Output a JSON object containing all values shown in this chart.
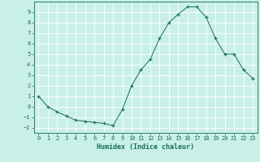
{
  "x": [
    0,
    1,
    2,
    3,
    4,
    5,
    6,
    7,
    8,
    9,
    10,
    11,
    12,
    13,
    14,
    15,
    16,
    17,
    18,
    19,
    20,
    21,
    22,
    23
  ],
  "y": [
    1.0,
    0.0,
    -0.5,
    -0.9,
    -1.3,
    -1.4,
    -1.5,
    -1.6,
    -1.8,
    -0.3,
    2.0,
    3.5,
    4.5,
    6.5,
    8.0,
    8.8,
    9.5,
    9.5,
    8.5,
    6.5,
    5.0,
    5.0,
    3.5,
    2.7
  ],
  "line_color": "#1a6b5a",
  "marker": "+",
  "marker_color": "#1a6b5a",
  "bg_color": "#c8f0e8",
  "grid_color": "#ffffff",
  "grid_minor_color": "#e8f8f4",
  "axis_color": "#1a6b5a",
  "spine_color": "#1a6b5a",
  "xlabel": "Humidex (Indice chaleur)",
  "ylim": [
    -2.5,
    10.0
  ],
  "xlim": [
    -0.5,
    23.5
  ],
  "yticks": [
    -2,
    -1,
    0,
    1,
    2,
    3,
    4,
    5,
    6,
    7,
    8,
    9
  ],
  "xticks": [
    0,
    1,
    2,
    3,
    4,
    5,
    6,
    7,
    8,
    9,
    10,
    11,
    12,
    13,
    14,
    15,
    16,
    17,
    18,
    19,
    20,
    21,
    22,
    23
  ],
  "tick_fontsize": 5.0,
  "xlabel_fontsize": 6.0
}
